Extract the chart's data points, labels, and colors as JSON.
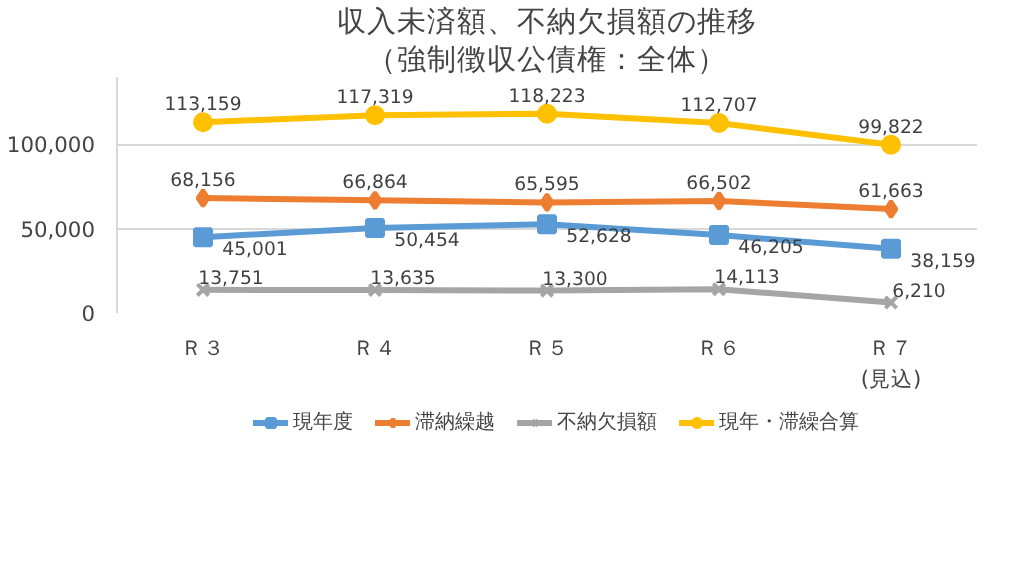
{
  "chart_data": {
    "type": "line",
    "title": "収入未済額、不納欠損額の推移",
    "subtitle": "（強制徴収公債権：全体）",
    "categories": [
      "Ｒ３",
      "Ｒ４",
      "Ｒ５",
      "Ｒ６",
      "Ｒ７\n(見込)"
    ],
    "series": [
      {
        "name": "現年度",
        "color": "#5b9bd5",
        "marker": "square",
        "values": [
          45001,
          50454,
          52628,
          46205,
          38159
        ],
        "value_labels": [
          "45,001",
          "50,454",
          "52,628",
          "46,205",
          "38,159"
        ]
      },
      {
        "name": "滞納繰越",
        "color": "#ed7d31",
        "marker": "diamond",
        "values": [
          68156,
          66864,
          65595,
          66502,
          61663
        ],
        "value_labels": [
          "68,156",
          "66,864",
          "65,595",
          "66,502",
          "61,663"
        ]
      },
      {
        "name": "不納欠損額",
        "color": "#a5a5a5",
        "marker": "cross",
        "values": [
          13751,
          13635,
          13300,
          14113,
          6210
        ],
        "value_labels": [
          "13,751",
          "13,635",
          "13,300",
          "14,113",
          "6,210"
        ]
      },
      {
        "name": "現年・滞繰合算",
        "color": "#ffc000",
        "marker": "circle",
        "values": [
          113159,
          117319,
          118223,
          112707,
          99822
        ],
        "value_labels": [
          "113,159",
          "117,319",
          "118,223",
          "112,707",
          "99,822"
        ]
      }
    ],
    "ylim": [
      0,
      140000
    ],
    "yticks": [
      0,
      {
        "value": 50000,
        "label": "50,000"
      },
      {
        "value": 100000,
        "label": "100,000"
      }
    ],
    "grid": "y",
    "legend": "bottom",
    "line_style": "solid"
  }
}
